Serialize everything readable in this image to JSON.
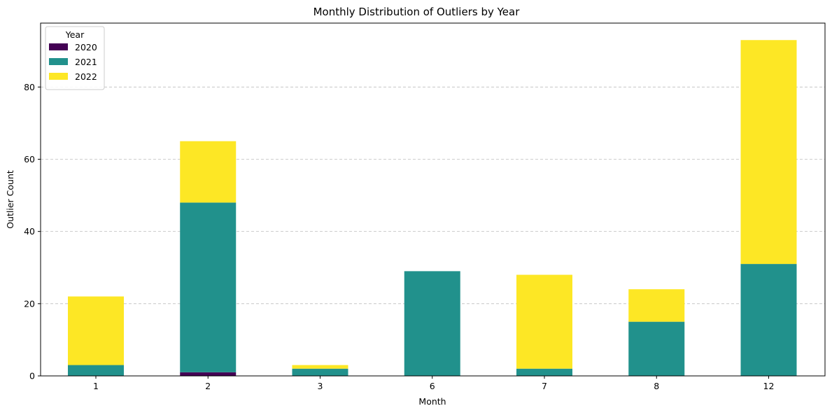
{
  "chart_data": {
    "type": "bar",
    "stacked": true,
    "title": "Monthly Distribution of Outliers by Year",
    "xlabel": "Month",
    "ylabel": "Outlier Count",
    "categories": [
      "1",
      "2",
      "3",
      "6",
      "7",
      "8",
      "12"
    ],
    "series": [
      {
        "name": "2020",
        "color": "#440154",
        "values": [
          0,
          1,
          0,
          0,
          0,
          0,
          0
        ]
      },
      {
        "name": "2021",
        "color": "#21918c",
        "values": [
          3,
          47,
          2,
          29,
          2,
          15,
          31
        ]
      },
      {
        "name": "2022",
        "color": "#fde725",
        "values": [
          19,
          17,
          1,
          0,
          26,
          9,
          62
        ]
      }
    ],
    "ylim": [
      0,
      97.7
    ],
    "yticks": [
      0,
      20,
      40,
      60,
      80
    ],
    "grid": "y-dashed",
    "legend": {
      "title": "Year",
      "placement": "top-left"
    }
  }
}
